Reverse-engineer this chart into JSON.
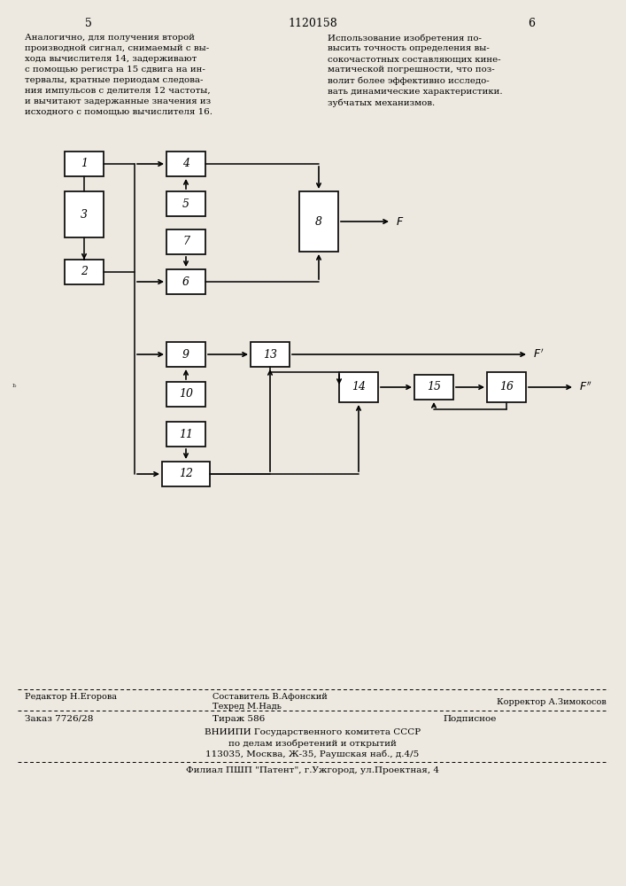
{
  "bg_color": "#ede9e0",
  "page_num_left": "5",
  "page_num_center": "1120158",
  "page_num_right": "6",
  "text_left": "Аналогично, для получения второй\nпроизводной сигнал, снимаемый с вы-\nхода вычислителя 14, задерживают\nс помощью регистра 15 сдвига на ин-\nтервалы, кратные периодам следова-\nния импульсов с делителя 12 частоты,\nи вычитают задержанные значения из\nисходного с помощью вычислителя 16.",
  "text_right": "Использование изобретения по-\nвысить точность определения вы-\nсокочастотных составляющих кине-\nматической погрешности, что поз-\nволит более эффективно исследо-\nвать динамические характеристики.\nзубчатых механизмов.",
  "footer_editor": "Редактор Н.Егорова",
  "footer_composer1": "Составитель В.Афонский",
  "footer_composer2": "Техред М.Надь",
  "footer_corrector": "Корректор А.Зимокосов",
  "footer_order": "Заказ 7726/28",
  "footer_copies": "Тираж 586",
  "footer_signed": "Подписное",
  "footer_org1": "ВНИИПИ Государственного комитета СССР",
  "footer_org2": "по делам изобретений и открытий",
  "footer_addr": "113035, Москва, Ж-35, Раушская наб., д.4/5",
  "footer_branch": "Филиал ПШП \"Патент\", г.Ужгород, ул.Проектная, 4"
}
